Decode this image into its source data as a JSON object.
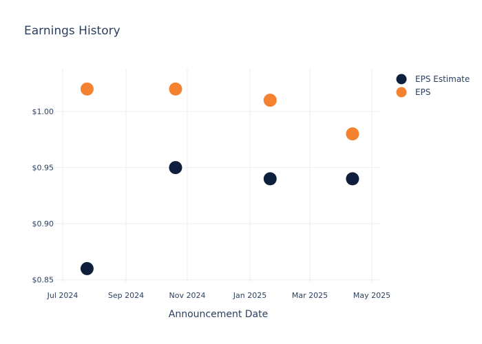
{
  "chart_data": {
    "type": "scatter",
    "title": "Earnings History",
    "xlabel": "Announcement Date",
    "ylabel": "",
    "x_ticks": [
      "Jul 2024",
      "Sep 2024",
      "Nov 2024",
      "Jan 2025",
      "Mar 2025",
      "May 2025"
    ],
    "y_ticks": [
      "$0.85",
      "$0.90",
      "$0.95",
      "$1.00"
    ],
    "ylim": [
      0.848,
      1.038
    ],
    "y_tick_values": [
      0.85,
      0.9,
      0.95,
      1.0
    ],
    "legend_position": "top-right",
    "grid": true,
    "series": [
      {
        "name": "EPS Estimate",
        "color": "#0d1f3c",
        "points": [
          {
            "date": "2024-07-25",
            "value": 0.86
          },
          {
            "date": "2024-10-20",
            "value": 0.95
          },
          {
            "date": "2025-01-21",
            "value": 0.94
          },
          {
            "date": "2025-04-12",
            "value": 0.94
          }
        ]
      },
      {
        "name": "EPS",
        "color": "#f58231",
        "points": [
          {
            "date": "2024-07-25",
            "value": 1.02
          },
          {
            "date": "2024-10-20",
            "value": 1.02
          },
          {
            "date": "2025-01-21",
            "value": 1.01
          },
          {
            "date": "2025-04-12",
            "value": 0.98
          }
        ]
      }
    ]
  }
}
